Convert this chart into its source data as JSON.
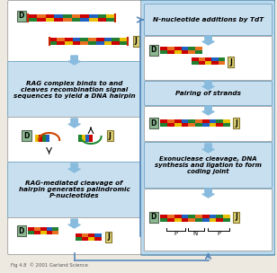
{
  "fig_bg": "#ede9e0",
  "white_box_fc": "#ffffff",
  "white_box_ec": "#aaaaaa",
  "blue_text_box_fc": "#c8dff0",
  "blue_text_box_ec": "#7aaac8",
  "right_outer_fc": "#b8d8ee",
  "right_outer_ec": "#5588aa",
  "label_D_fc": "#8ab890",
  "label_D_ec": "#556655",
  "label_J_fc": "#d8cc70",
  "label_J_ec": "#887730",
  "arrow_color": "#5588bb",
  "footer": "Fig 4.8  © 2001 Garland Science",
  "left_texts": [
    "RAG complex binds to and\ncleaves recombination signal\nsequences to yield a DNA hairpin",
    "RAG-mediated cleavage of\nhairpin generates palindromic\nP-nucleotides"
  ],
  "right_texts": [
    "N-nucleotide additions by TdT",
    "Pairing of strands",
    "Exonuclease cleavage, DNA\nsynthesis and ligation to form\ncoding joint"
  ],
  "dna_top1": [
    "#cc0000",
    "#e87020",
    "#cc0000",
    "#2060c0",
    "#208030",
    "#e87020",
    "#cc0000",
    "#2060c0",
    "#208030",
    "#e8c000"
  ],
  "dna_bot1": [
    "#208030",
    "#cc0000",
    "#e8c000",
    "#cc0000",
    "#e87020",
    "#208030",
    "#2060c0",
    "#e8c000",
    "#cc0000",
    "#208030"
  ],
  "dna_top2": [
    "#cc0000",
    "#e87020",
    "#cc0000",
    "#2060c0",
    "#208030",
    "#e87020",
    "#cc0000",
    "#2060c0"
  ],
  "dna_bot2": [
    "#208030",
    "#cc0000",
    "#e8c000",
    "#cc0000",
    "#e87020",
    "#208030",
    "#2060c0",
    "#e8c000"
  ],
  "signal_colors": [
    "#cc0000",
    "#208030",
    "#2060c0",
    "#e87020"
  ],
  "hairpin_D_cols": [
    "#e8c000",
    "#cc0000",
    "#208030",
    "#2060c0"
  ],
  "hairpin_J_cols": [
    "#208030",
    "#e8c000",
    "#2060c0",
    "#cc0000"
  ],
  "pnp": [
    "P",
    "N",
    "P"
  ]
}
